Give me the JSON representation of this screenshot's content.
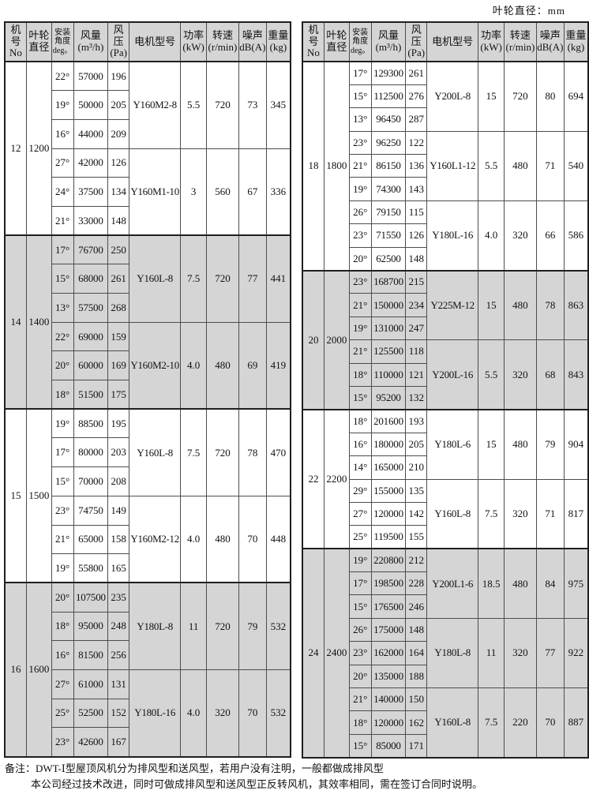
{
  "meta": {
    "top_right_label": "叶轮直径：mm"
  },
  "columns": [
    {
      "key": "no",
      "lines": [
        "机号",
        "No"
      ]
    },
    {
      "key": "diameter",
      "lines": [
        "叶轮",
        "直径"
      ]
    },
    {
      "key": "angle",
      "lines": [
        "安装",
        "角度",
        "deg。"
      ],
      "small": true
    },
    {
      "key": "volume",
      "lines": [
        "风量",
        "(m³/h)"
      ]
    },
    {
      "key": "pressure",
      "lines": [
        "风压",
        "(Pa)"
      ]
    },
    {
      "key": "motor",
      "lines": [
        "电机型号"
      ]
    },
    {
      "key": "power",
      "lines": [
        "功率",
        "(kW)"
      ]
    },
    {
      "key": "speed",
      "lines": [
        "转速",
        "(r/min)"
      ]
    },
    {
      "key": "noise",
      "lines": [
        "噪声",
        "dB(A)"
      ]
    },
    {
      "key": "weight",
      "lines": [
        "重量",
        "(kg)"
      ]
    }
  ],
  "tables": [
    {
      "id": "left",
      "blocks": [
        {
          "no": "12",
          "diameter": "1200",
          "shaded": false,
          "groups": [
            {
              "motor": "Y160M2-8",
              "power": "5.5",
              "speed": "720",
              "noise": "73",
              "weight": "345",
              "rows": [
                [
                  "22°",
                  "57000",
                  "196"
                ],
                [
                  "19°",
                  "50000",
                  "205"
                ],
                [
                  "16°",
                  "44000",
                  "209"
                ]
              ]
            },
            {
              "motor": "Y160M1-10",
              "power": "3",
              "speed": "560",
              "noise": "67",
              "weight": "336",
              "rows": [
                [
                  "27°",
                  "42000",
                  "126"
                ],
                [
                  "24°",
                  "37500",
                  "134"
                ],
                [
                  "21°",
                  "33000",
                  "148"
                ]
              ]
            }
          ]
        },
        {
          "no": "14",
          "diameter": "1400",
          "shaded": true,
          "groups": [
            {
              "motor": "Y160L-8",
              "power": "7.5",
              "speed": "720",
              "noise": "77",
              "weight": "441",
              "rows": [
                [
                  "17°",
                  "76700",
                  "250"
                ],
                [
                  "15°",
                  "68000",
                  "261"
                ],
                [
                  "13°",
                  "57500",
                  "268"
                ]
              ]
            },
            {
              "motor": "Y160M2-10",
              "power": "4.0",
              "speed": "480",
              "noise": "69",
              "weight": "419",
              "rows": [
                [
                  "22°",
                  "69000",
                  "159"
                ],
                [
                  "20°",
                  "60000",
                  "169"
                ],
                [
                  "18°",
                  "51500",
                  "175"
                ]
              ]
            }
          ]
        },
        {
          "no": "15",
          "diameter": "1500",
          "shaded": false,
          "groups": [
            {
              "motor": "Y160L-8",
              "power": "7.5",
              "speed": "720",
              "noise": "78",
              "weight": "470",
              "rows": [
                [
                  "19°",
                  "88500",
                  "195"
                ],
                [
                  "17°",
                  "80000",
                  "203"
                ],
                [
                  "15°",
                  "70000",
                  "208"
                ]
              ]
            },
            {
              "motor": "Y160M2-12",
              "power": "4.0",
              "speed": "480",
              "noise": "70",
              "weight": "448",
              "rows": [
                [
                  "23°",
                  "74750",
                  "149"
                ],
                [
                  "21°",
                  "65000",
                  "158"
                ],
                [
                  "19°",
                  "55800",
                  "165"
                ]
              ]
            }
          ]
        },
        {
          "no": "16",
          "diameter": "1600",
          "shaded": true,
          "groups": [
            {
              "motor": "Y180L-8",
              "power": "11",
              "speed": "720",
              "noise": "79",
              "weight": "532",
              "rows": [
                [
                  "20°",
                  "107500",
                  "235"
                ],
                [
                  "18°",
                  "95000",
                  "248"
                ],
                [
                  "16°",
                  "81500",
                  "256"
                ]
              ]
            },
            {
              "motor": "Y180L-16",
              "power": "4.0",
              "speed": "320",
              "noise": "70",
              "weight": "532",
              "rows": [
                [
                  "27°",
                  "61000",
                  "131"
                ],
                [
                  "25°",
                  "52500",
                  "152"
                ],
                [
                  "23°",
                  "42600",
                  "167"
                ]
              ]
            }
          ]
        }
      ]
    },
    {
      "id": "right",
      "blocks": [
        {
          "no": "18",
          "diameter": "1800",
          "shaded": false,
          "groups": [
            {
              "motor": "Y200L-8",
              "power": "15",
              "speed": "720",
              "noise": "80",
              "weight": "694",
              "rows": [
                [
                  "17°",
                  "129300",
                  "261"
                ],
                [
                  "15°",
                  "112500",
                  "276"
                ],
                [
                  "13°",
                  "96450",
                  "287"
                ]
              ]
            },
            {
              "motor": "Y160L1-12",
              "power": "5.5",
              "speed": "480",
              "noise": "71",
              "weight": "540",
              "rows": [
                [
                  "23°",
                  "96250",
                  "122"
                ],
                [
                  "21°",
                  "86150",
                  "136"
                ],
                [
                  "19°",
                  "74300",
                  "143"
                ]
              ]
            },
            {
              "motor": "Y180L-16",
              "power": "4.0",
              "speed": "320",
              "noise": "66",
              "weight": "586",
              "rows": [
                [
                  "26°",
                  "79150",
                  "115"
                ],
                [
                  "23°",
                  "71550",
                  "126"
                ],
                [
                  "20°",
                  "62500",
                  "148"
                ]
              ]
            }
          ]
        },
        {
          "no": "20",
          "diameter": "2000",
          "shaded": true,
          "groups": [
            {
              "motor": "Y225M-12",
              "power": "15",
              "speed": "480",
              "noise": "78",
              "weight": "863",
              "rows": [
                [
                  "23°",
                  "168700",
                  "215"
                ],
                [
                  "21°",
                  "150000",
                  "234"
                ],
                [
                  "19°",
                  "131000",
                  "247"
                ]
              ]
            },
            {
              "motor": "Y200L-16",
              "power": "5.5",
              "speed": "320",
              "noise": "68",
              "weight": "843",
              "rows": [
                [
                  "21°",
                  "125500",
                  "118"
                ],
                [
                  "18°",
                  "110000",
                  "121"
                ],
                [
                  "15°",
                  "95200",
                  "132"
                ]
              ]
            }
          ]
        },
        {
          "no": "22",
          "diameter": "2200",
          "shaded": false,
          "groups": [
            {
              "motor": "Y180L-6",
              "power": "15",
              "speed": "480",
              "noise": "79",
              "weight": "904",
              "rows": [
                [
                  "18°",
                  "201600",
                  "193"
                ],
                [
                  "16°",
                  "180000",
                  "205"
                ],
                [
                  "14°",
                  "165000",
                  "210"
                ]
              ]
            },
            {
              "motor": "Y160L-8",
              "power": "7.5",
              "speed": "320",
              "noise": "71",
              "weight": "817",
              "rows": [
                [
                  "29°",
                  "155000",
                  "135"
                ],
                [
                  "27°",
                  "120000",
                  "142"
                ],
                [
                  "25°",
                  "119500",
                  "155"
                ]
              ]
            }
          ]
        },
        {
          "no": "24",
          "diameter": "2400",
          "shaded": true,
          "groups": [
            {
              "motor": "Y200L1-6",
              "power": "18.5",
              "speed": "480",
              "noise": "84",
              "weight": "975",
              "rows": [
                [
                  "19°",
                  "220800",
                  "212"
                ],
                [
                  "17°",
                  "198500",
                  "228"
                ],
                [
                  "15°",
                  "176500",
                  "246"
                ]
              ]
            },
            {
              "motor": "Y180L-8",
              "power": "11",
              "speed": "320",
              "noise": "77",
              "weight": "922",
              "rows": [
                [
                  "26°",
                  "175000",
                  "148"
                ],
                [
                  "23°",
                  "162000",
                  "164"
                ],
                [
                  "20°",
                  "135000",
                  "188"
                ]
              ]
            },
            {
              "motor": "Y160L-8",
              "power": "7.5",
              "speed": "220",
              "noise": "70",
              "weight": "887",
              "rows": [
                [
                  "21°",
                  "140000",
                  "150"
                ],
                [
                  "18°",
                  "120000",
                  "162"
                ],
                [
                  "15°",
                  "85000",
                  "171"
                ]
              ]
            }
          ]
        }
      ]
    }
  ],
  "footnotes": [
    "备注：DWT-Ⅰ型屋顶风机分为排风型和送风型，若用户没有注明，一般都做成排风型",
    "本公司经过技术改进，同时可做成排风型和送风型正反转风机，其效率相同，需在签订合同时说明。"
  ]
}
